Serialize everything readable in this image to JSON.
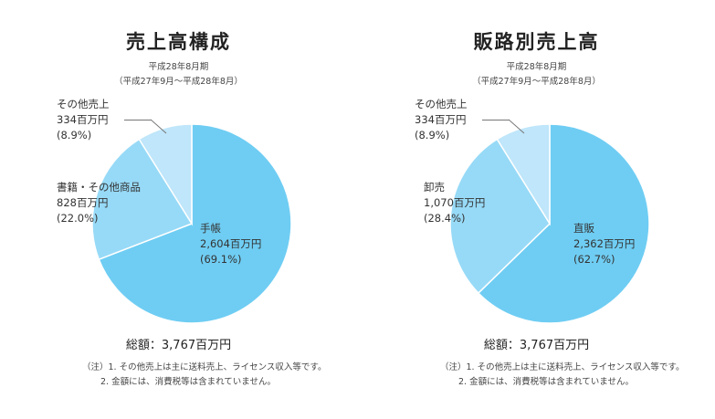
{
  "left": {
    "title": "売上高構成",
    "sub1": "平成28年8月期",
    "sub2": "（平成27年9月〜平成28年8月）",
    "total": "総額：3,767百万円",
    "notes": [
      "（注）1. その他売上は主に送料売上、ライセンス収入等です。",
      "2. 金額には、消費税等は含まれていません。"
    ]
  },
  "right": {
    "title": "販路別売上高",
    "sub1": "平成28年8月期",
    "sub2": "（平成27年9月〜平成28年8月）",
    "total": "総額：3,767百万円",
    "notes": [
      "（注）1. その他売上は主に送料売上、ライセンス収入等です。",
      "2. 金額には、消費税等は含まれていません。"
    ]
  },
  "chart_data": [
    {
      "type": "pie",
      "title": "売上高構成",
      "unit": "百万円",
      "slices": [
        {
          "label": "手帳",
          "value": 2604,
          "value_text": "2,604百万円",
          "percent_text": "(69.1%)",
          "color": "#6fcdf3"
        },
        {
          "label": "書籍・その他商品",
          "value": 828,
          "value_text": "828百万円",
          "percent_text": "(22.0%)",
          "color": "#97daf7"
        },
        {
          "label": "その他売上",
          "value": 334,
          "value_text": "334百万円",
          "percent_text": "(8.9%)",
          "color": "#bfe6fa"
        }
      ]
    },
    {
      "type": "pie",
      "title": "販路別売上高",
      "unit": "百万円",
      "slices": [
        {
          "label": "直販",
          "value": 2362,
          "value_text": "2,362百万円",
          "percent_text": "(62.7%)",
          "color": "#6fcdf3"
        },
        {
          "label": "卸売",
          "value": 1070,
          "value_text": "1,070百万円",
          "percent_text": "(28.4%)",
          "color": "#97daf7"
        },
        {
          "label": "その他売上",
          "value": 334,
          "value_text": "334百万円",
          "percent_text": "(8.9%)",
          "color": "#bfe6fa"
        }
      ]
    }
  ]
}
